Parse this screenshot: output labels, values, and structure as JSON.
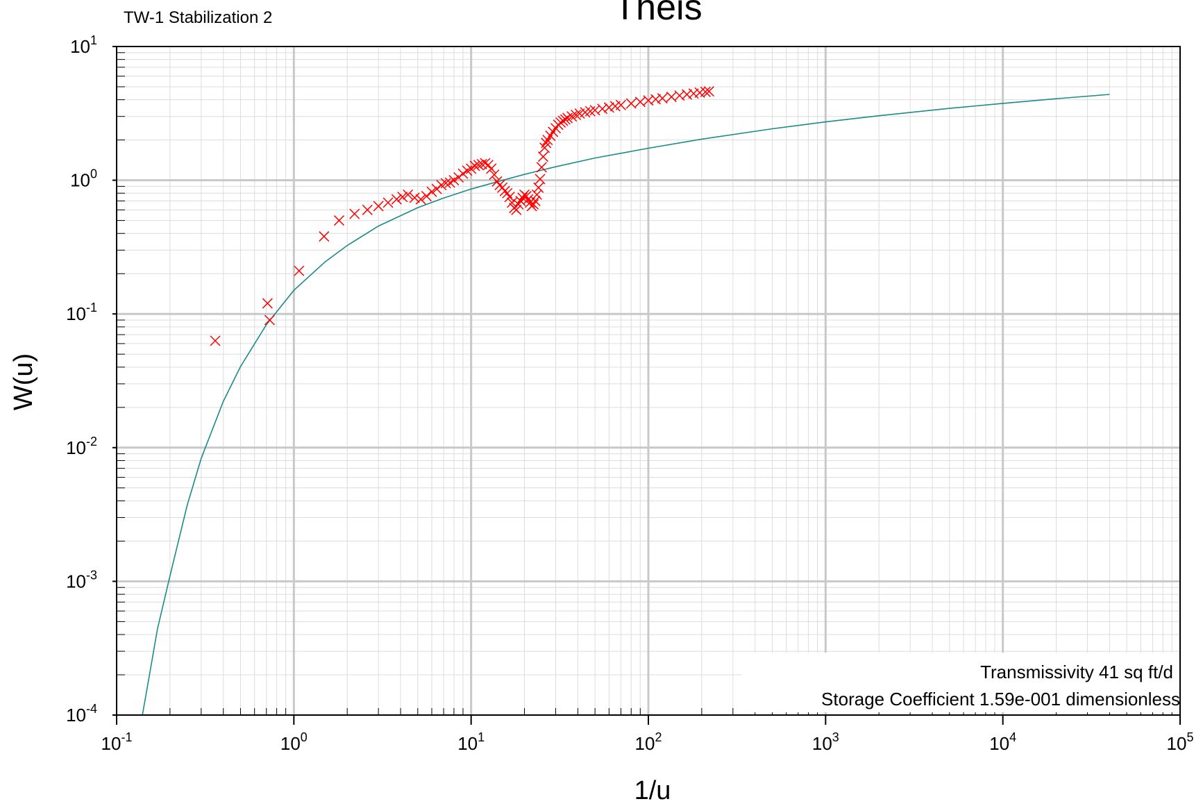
{
  "chart_data": {
    "type": "scatter",
    "title": "Theis",
    "subtitle": "TW-1 Stabilization 2",
    "xlabel": "1/u",
    "ylabel": "W(u)",
    "x_scale": "log",
    "y_scale": "log",
    "xlim": [
      0.1,
      100000
    ],
    "ylim": [
      0.0001,
      10
    ],
    "grid": true,
    "x_ticks": [
      {
        "base": "10",
        "exp": "-1"
      },
      {
        "base": "10",
        "exp": "0"
      },
      {
        "base": "10",
        "exp": "1"
      },
      {
        "base": "10",
        "exp": "2"
      },
      {
        "base": "10",
        "exp": "3"
      },
      {
        "base": "10",
        "exp": "4"
      },
      {
        "base": "10",
        "exp": "5"
      }
    ],
    "y_ticks": [
      {
        "base": "10",
        "exp": "-4"
      },
      {
        "base": "10",
        "exp": "-3"
      },
      {
        "base": "10",
        "exp": "-2"
      },
      {
        "base": "10",
        "exp": "-1"
      },
      {
        "base": "10",
        "exp": "0"
      },
      {
        "base": "10",
        "exp": "1"
      }
    ],
    "annotations": [
      "Transmissivity  41  sq ft/d",
      "Storage Coefficient  1.59e-001  dimensionless"
    ],
    "curve": {
      "type": "line",
      "color": "#1a8a8a",
      "x": [
        0.1397,
        0.15,
        0.17,
        0.2,
        0.25,
        0.3,
        0.4,
        0.5,
        0.7,
        1,
        1.5,
        2,
        3,
        5,
        7,
        10,
        15,
        20,
        30,
        50,
        70,
        100,
        200,
        500,
        1000,
        2000,
        5000,
        10000,
        20000,
        40000
      ],
      "y": [
        0.0001,
        0.00017,
        0.00044,
        0.0011,
        0.0037,
        0.0083,
        0.0222,
        0.0404,
        0.0832,
        0.1502,
        0.2452,
        0.3252,
        0.4544,
        0.6238,
        0.7363,
        0.8591,
        0.9977,
        1.1061,
        1.2603,
        1.4652,
        1.5895,
        1.735,
        2.0284,
        2.4253,
        2.7299,
        3.0355,
        3.4465,
        3.7576,
        4.069,
        4.3805
      ]
    },
    "series": [
      {
        "color": "#ff0000",
        "marker": "x",
        "x": [
          0.36,
          0.71,
          0.73,
          1.07,
          1.48,
          1.8,
          2.2,
          2.6,
          3.0,
          3.4,
          3.8,
          4.1,
          4.4,
          4.8,
          5.2,
          5.6,
          6.0,
          6.4,
          6.8,
          7.2,
          7.6,
          8.0,
          8.5,
          9.0,
          9.5,
          10.0,
          10.5,
          11.0,
          11.5,
          12.0,
          12.5,
          13.0,
          13.5,
          14.0,
          14.5,
          15.0,
          15.5,
          16.0,
          16.5,
          17.0,
          17.5,
          18.0,
          18.5,
          19.0,
          19.5,
          20.0,
          20.5,
          21.0,
          21.5,
          22.0,
          22.5,
          23.0,
          23.5,
          24.0,
          24.5,
          25.0,
          25.5,
          26.0,
          26.5,
          27.0,
          28.0,
          29.0,
          30.0,
          31.0,
          32.0,
          33.0,
          34.0,
          35.0,
          37.0,
          39.0,
          41.0,
          44.0,
          47.0,
          50.0,
          55.0,
          60.0,
          65.0,
          70.0,
          80.0,
          90.0,
          100.0,
          110.0,
          120.0,
          135.0,
          150.0,
          165.0,
          180.0,
          195.0,
          210.0,
          220.0
        ],
        "y": [
          0.063,
          0.12,
          0.09,
          0.21,
          0.38,
          0.5,
          0.56,
          0.6,
          0.64,
          0.68,
          0.72,
          0.75,
          0.78,
          0.74,
          0.72,
          0.76,
          0.82,
          0.86,
          0.92,
          0.95,
          0.96,
          1.0,
          1.05,
          1.12,
          1.18,
          1.22,
          1.28,
          1.3,
          1.32,
          1.34,
          1.3,
          1.22,
          1.1,
          0.98,
          0.92,
          0.88,
          0.83,
          0.8,
          0.75,
          0.68,
          0.62,
          0.6,
          0.66,
          0.7,
          0.74,
          0.78,
          0.76,
          0.72,
          0.68,
          0.64,
          0.66,
          0.7,
          0.78,
          0.88,
          1.02,
          1.25,
          1.5,
          1.75,
          1.9,
          2.0,
          2.15,
          2.3,
          2.45,
          2.6,
          2.7,
          2.78,
          2.85,
          2.92,
          3.0,
          3.08,
          3.15,
          3.22,
          3.28,
          3.34,
          3.42,
          3.5,
          3.58,
          3.65,
          3.75,
          3.85,
          3.95,
          4.03,
          4.1,
          4.2,
          4.3,
          4.38,
          4.45,
          4.52,
          4.58,
          4.62
        ]
      }
    ]
  }
}
